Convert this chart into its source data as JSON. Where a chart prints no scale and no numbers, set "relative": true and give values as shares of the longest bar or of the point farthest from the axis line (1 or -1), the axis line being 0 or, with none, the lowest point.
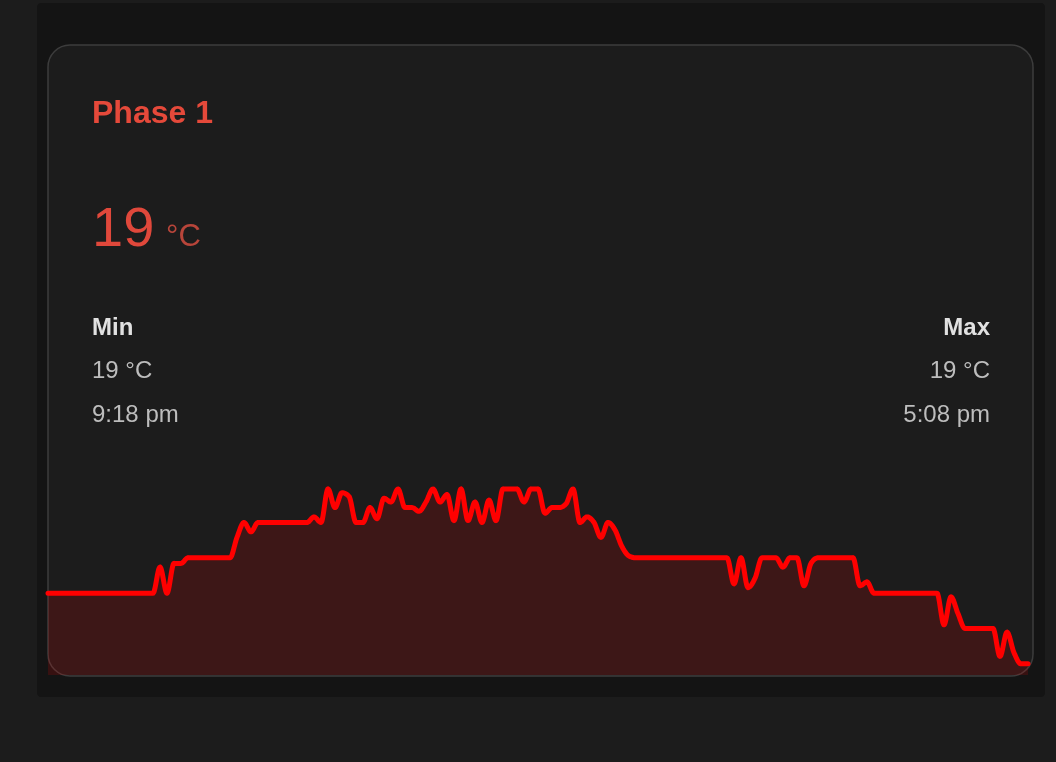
{
  "chart_data": {
    "type": "area",
    "title": "Phase 1",
    "annotations": [
      "19",
      "°C",
      "Min",
      "19 °C",
      "9:18 pm",
      "Max",
      "19 °C",
      "5:08 pm"
    ],
    "relative": true,
    "categories": [
      null,
      null,
      null,
      null,
      null,
      null,
      null,
      null,
      null,
      null,
      null,
      null,
      null,
      null,
      null,
      null,
      null,
      null,
      null,
      null,
      null,
      null,
      null,
      null,
      null,
      null,
      null,
      null,
      null,
      null,
      null,
      null,
      null,
      null,
      null,
      null,
      null,
      null,
      null,
      null,
      null,
      null,
      null,
      null,
      null,
      null,
      null,
      null,
      null,
      null,
      null,
      null,
      null,
      null,
      null,
      null,
      null,
      null,
      null,
      null,
      null,
      null,
      null,
      null,
      null,
      null,
      null,
      null,
      null,
      null,
      null,
      null,
      null,
      null,
      null,
      null,
      null,
      null,
      null,
      null,
      null,
      null,
      null,
      null,
      null,
      null,
      null,
      null,
      null,
      null,
      null,
      null,
      null,
      null,
      null,
      null,
      null,
      null,
      null,
      null,
      null,
      null,
      null,
      null,
      null,
      null,
      null,
      null,
      null,
      null,
      null,
      null,
      null,
      null,
      null,
      null,
      null,
      null,
      null,
      null,
      null,
      null,
      null,
      null,
      null,
      null,
      null,
      null,
      null,
      null,
      null,
      null,
      null,
      null,
      null,
      null,
      null,
      null,
      null,
      null,
      null
    ],
    "series": [
      {
        "color": "#ff0000",
        "values": [
          0.44,
          0.44,
          0.44,
          0.44,
          0.44,
          0.44,
          0.44,
          0.44,
          0.44,
          0.44,
          0.44,
          0.44,
          0.44,
          0.44,
          0.44,
          0.44,
          0.58,
          0.44,
          0.6,
          0.6,
          0.63,
          0.63,
          0.63,
          0.63,
          0.63,
          0.63,
          0.63,
          0.74,
          0.82,
          0.77,
          0.82,
          0.82,
          0.82,
          0.82,
          0.82,
          0.82,
          0.82,
          0.82,
          0.85,
          0.82,
          1,
          0.9,
          0.98,
          0.96,
          0.82,
          0.82,
          0.9,
          0.84,
          0.95,
          0.93,
          1,
          0.9,
          0.9,
          0.88,
          0.93,
          1,
          0.93,
          0.97,
          0.83,
          1,
          0.83,
          0.93,
          0.82,
          0.94,
          0.83,
          1,
          1,
          1,
          0.93,
          1,
          1,
          0.87,
          0.9,
          0.9,
          0.92,
          1,
          0.82,
          0.85,
          0.82,
          0.74,
          0.82,
          0.78,
          0.69,
          0.64,
          0.63,
          0.63,
          0.63,
          0.63,
          0.63,
          0.63,
          0.63,
          0.63,
          0.63,
          0.63,
          0.63,
          0.63,
          0.63,
          0.63,
          0.49,
          0.63,
          0.47,
          0.52,
          0.63,
          0.63,
          0.63,
          0.58,
          0.63,
          0.63,
          0.48,
          0.6,
          0.63,
          0.63,
          0.63,
          0.63,
          0.63,
          0.63,
          0.48,
          0.5,
          0.44,
          0.44,
          0.44,
          0.44,
          0.44,
          0.44,
          0.44,
          0.44,
          0.44,
          0.44,
          0.27,
          0.42,
          0.33,
          0.25,
          0.25,
          0.25,
          0.25,
          0.25,
          0.1,
          0.23,
          0.12,
          0.06,
          0.06
        ]
      }
    ]
  }
}
